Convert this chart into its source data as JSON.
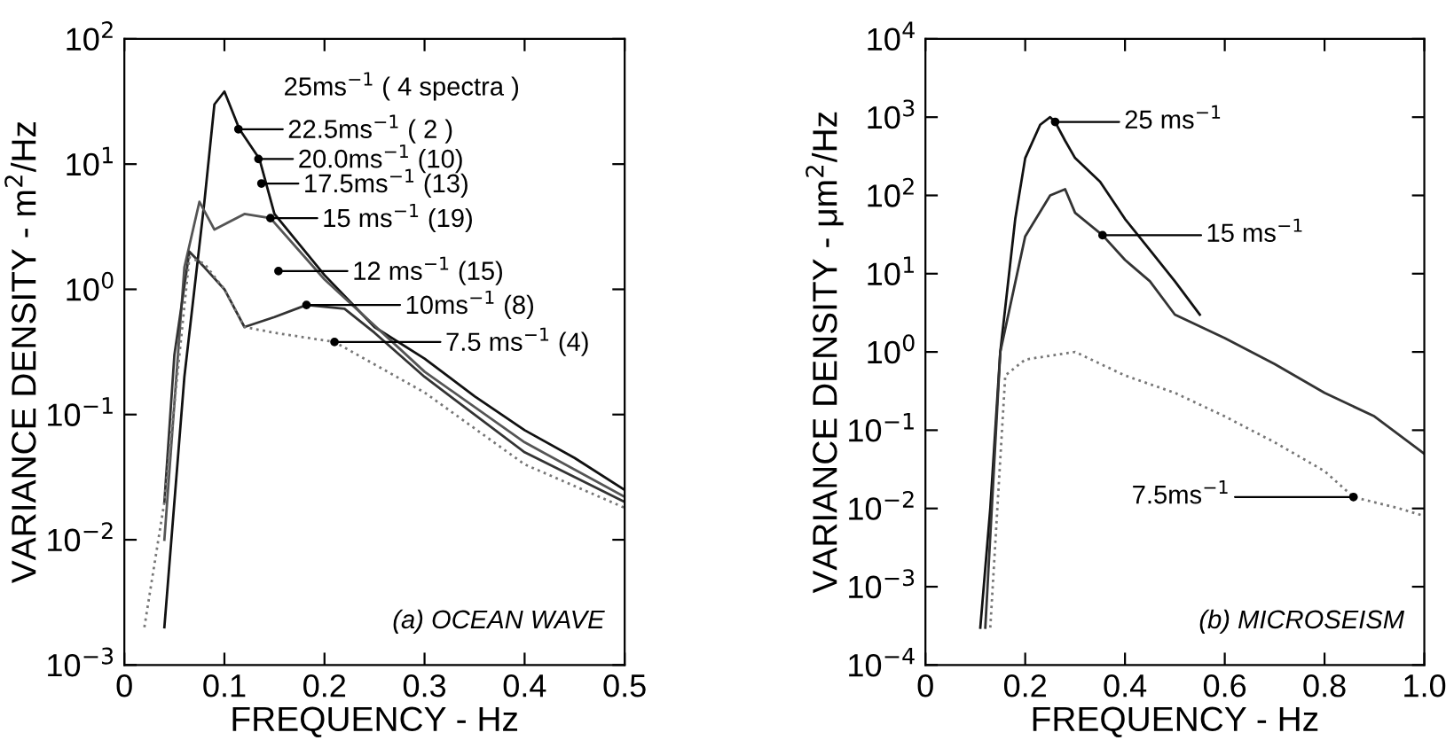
{
  "chart_data": [
    {
      "type": "line",
      "xlabel": "FREQUENCY - Hz",
      "ylabel": "VARIANCE DENSITY - m$^{2}$/Hz",
      "log": "y",
      "grid": false,
      "legend": false,
      "marker": "none",
      "xlim": [
        0,
        0.5
      ],
      "xticks": [
        0,
        0.1,
        0.2,
        0.3,
        0.4,
        0.5
      ],
      "ylim": [
        0.001,
        100
      ],
      "yticks": [
        {
          "value": 0.001,
          "label": "10$^{−3}$"
        },
        {
          "value": 0.01,
          "label": "10$^{−2}$"
        },
        {
          "value": 0.1,
          "label": "10$^{−1}$"
        },
        {
          "value": 1,
          "label": "10$^{0}$"
        },
        {
          "value": 10,
          "label": "10$^{1}$"
        },
        {
          "value": 100,
          "label": "10$^{2}$"
        }
      ],
      "series": [
        {
          "color": "#111111",
          "line_style": "solid",
          "x": [
            0.04,
            0.06,
            0.08,
            0.09,
            0.1,
            0.115,
            0.135,
            0.15,
            0.2,
            0.25,
            0.3,
            0.35,
            0.4,
            0.45,
            0.5
          ],
          "values": [
            0.002,
            0.2,
            5,
            30,
            38,
            19,
            11,
            4,
            1.3,
            0.5,
            0.28,
            0.14,
            0.075,
            0.045,
            0.025
          ]
        },
        {
          "color": "#555555",
          "line_style": "solid",
          "x": [
            0.04,
            0.06,
            0.075,
            0.09,
            0.12,
            0.146,
            0.2,
            0.3,
            0.4,
            0.5
          ],
          "values": [
            0.01,
            1.5,
            5,
            3,
            4,
            3.7,
            1.2,
            0.22,
            0.06,
            0.022
          ]
        },
        {
          "color": "#333333",
          "line_style": "solid",
          "x": [
            0.04,
            0.05,
            0.065,
            0.08,
            0.1,
            0.12,
            0.15,
            0.182,
            0.22,
            0.25,
            0.3,
            0.4,
            0.5
          ],
          "values": [
            0.02,
            0.3,
            2,
            1.5,
            1.0,
            0.5,
            0.6,
            0.75,
            0.7,
            0.45,
            0.2,
            0.05,
            0.02
          ]
        },
        {
          "color": "#777777",
          "line_style": "dotted",
          "x": [
            0.02,
            0.04,
            0.065,
            0.08,
            0.1,
            0.12,
            0.15,
            0.21,
            0.3,
            0.4,
            0.5
          ],
          "values": [
            0.002,
            0.02,
            1.8,
            1.6,
            1.0,
            0.5,
            0.45,
            0.38,
            0.15,
            0.04,
            0.018
          ]
        }
      ],
      "annotations": [
        {
          "text": "25ms$^{−1}$ ( 4 spectra )",
          "x": 0.1,
          "y": 38
        },
        {
          "text": "22.5ms$^{−1}$ ( 2 )",
          "x": 0.114,
          "y": 19
        },
        {
          "text": "20.0ms$^{−1}$ (10)",
          "x": 0.134,
          "y": 11
        },
        {
          "text": "17.5ms$^{−1}$ (13)",
          "x": 0.137,
          "y": 7
        },
        {
          "text": "15 ms$^{−1}$ (19)",
          "x": 0.146,
          "y": 3.7
        },
        {
          "text": "12 ms$^{−1}$ (15)",
          "x": 0.154,
          "y": 1.4
        },
        {
          "text": "10ms$^{−1}$ (8)",
          "x": 0.182,
          "y": 0.75
        },
        {
          "text": "7.5 ms$^{−1}$ (4)",
          "x": 0.21,
          "y": 0.38
        },
        "(a) OCEAN WAVE"
      ]
    },
    {
      "type": "line",
      "xlabel": "FREQUENCY - Hz",
      "ylabel": "VARIANCE DENSITY - μm$^{2}$/Hz",
      "log": "y",
      "grid": false,
      "legend": false,
      "marker": "none",
      "xlim": [
        0,
        1.0
      ],
      "xticks": [
        0,
        0.2,
        0.4,
        0.6,
        0.8,
        {
          "value": 1.0,
          "label": "1.0"
        }
      ],
      "ylim": [
        0.0001,
        10000
      ],
      "yticks": [
        {
          "value": 0.0001,
          "label": "10$^{−4}$"
        },
        {
          "value": 0.001,
          "label": "10$^{−3}$"
        },
        {
          "value": 0.01,
          "label": "10$^{−2}$"
        },
        {
          "value": 0.1,
          "label": "10$^{−1}$"
        },
        {
          "value": 1,
          "label": "10$^{0}$"
        },
        {
          "value": 10,
          "label": "10$^{1}$"
        },
        {
          "value": 100,
          "label": "10$^{2}$"
        },
        {
          "value": 1000,
          "label": "10$^{3}$"
        },
        {
          "value": 10000,
          "label": "10$^{4}$"
        }
      ],
      "series": [
        {
          "color": "#111111",
          "line_style": "solid",
          "x": [
            0.11,
            0.13,
            0.15,
            0.18,
            0.2,
            0.23,
            0.25,
            0.26,
            0.28,
            0.3,
            0.35,
            0.4,
            0.45,
            0.5,
            0.55
          ],
          "values": [
            0.0003,
            0.01,
            1,
            50,
            300,
            800,
            1000,
            870,
            500,
            300,
            150,
            50,
            20,
            8,
            3
          ]
        },
        {
          "color": "#333333",
          "line_style": "solid",
          "x": [
            0.12,
            0.15,
            0.2,
            0.25,
            0.28,
            0.3,
            0.355,
            0.4,
            0.45,
            0.5,
            0.6,
            0.7,
            0.8,
            0.9,
            1.0
          ],
          "values": [
            0.0003,
            1,
            30,
            100,
            120,
            60,
            31,
            15,
            8,
            3,
            1.5,
            0.7,
            0.3,
            0.15,
            0.05
          ]
        },
        {
          "color": "#777777",
          "line_style": "dotted",
          "x": [
            0.13,
            0.16,
            0.2,
            0.3,
            0.4,
            0.5,
            0.6,
            0.7,
            0.8,
            0.858,
            0.95,
            1.0
          ],
          "values": [
            0.0003,
            0.5,
            0.8,
            1,
            0.5,
            0.3,
            0.15,
            0.07,
            0.03,
            0.014,
            0.01,
            0.008
          ]
        }
      ],
      "annotations": [
        {
          "text": "25 ms$^{−1}$",
          "x": 0.26,
          "y": 870
        },
        {
          "text": "15 ms$^{−1}$",
          "x": 0.355,
          "y": 31
        },
        {
          "text": "7.5ms$^{−1}$",
          "x": 0.858,
          "y": 0.014
        },
        "(b) MICROSEISM"
      ]
    }
  ]
}
